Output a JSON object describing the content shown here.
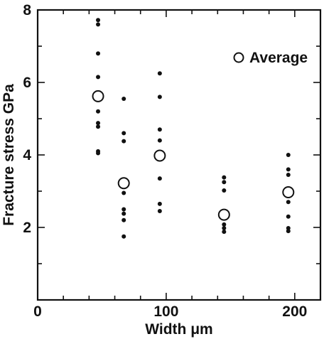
{
  "chart_data": {
    "type": "scatter",
    "xlabel": "Width  μm",
    "ylabel": "Fracture stress  GPa",
    "xlim": [
      0,
      220
    ],
    "ylim": [
      0,
      8
    ],
    "x_ticks": [
      0,
      100,
      200
    ],
    "y_ticks": [
      2,
      4,
      6,
      8
    ],
    "x_minor_step": 20,
    "y_minor_step": 1,
    "grid": false,
    "legend": {
      "position": "top-right",
      "entries": [
        "Average"
      ]
    },
    "series": [
      {
        "marker": "filled-dot",
        "points": [
          {
            "x": 47,
            "y": 7.72
          },
          {
            "x": 47,
            "y": 7.6
          },
          {
            "x": 47,
            "y": 6.8
          },
          {
            "x": 47,
            "y": 6.15
          },
          {
            "x": 47,
            "y": 5.2
          },
          {
            "x": 47,
            "y": 4.88
          },
          {
            "x": 47,
            "y": 4.78
          },
          {
            "x": 47,
            "y": 4.1
          },
          {
            "x": 47,
            "y": 4.05
          },
          {
            "x": 67,
            "y": 5.55
          },
          {
            "x": 67,
            "y": 4.6
          },
          {
            "x": 67,
            "y": 4.38
          },
          {
            "x": 67,
            "y": 2.95
          },
          {
            "x": 67,
            "y": 2.5
          },
          {
            "x": 67,
            "y": 2.38
          },
          {
            "x": 67,
            "y": 2.2
          },
          {
            "x": 67,
            "y": 1.75
          },
          {
            "x": 95,
            "y": 6.25
          },
          {
            "x": 95,
            "y": 5.6
          },
          {
            "x": 95,
            "y": 4.7
          },
          {
            "x": 95,
            "y": 4.4
          },
          {
            "x": 95,
            "y": 3.35
          },
          {
            "x": 95,
            "y": 2.65
          },
          {
            "x": 95,
            "y": 2.45
          },
          {
            "x": 145,
            "y": 3.38
          },
          {
            "x": 145,
            "y": 3.25
          },
          {
            "x": 145,
            "y": 3.02
          },
          {
            "x": 145,
            "y": 2.08
          },
          {
            "x": 145,
            "y": 1.98
          },
          {
            "x": 145,
            "y": 1.88
          },
          {
            "x": 195,
            "y": 4.0
          },
          {
            "x": 195,
            "y": 3.6
          },
          {
            "x": 195,
            "y": 3.45
          },
          {
            "x": 195,
            "y": 2.7
          },
          {
            "x": 195,
            "y": 2.3
          },
          {
            "x": 195,
            "y": 1.98
          },
          {
            "x": 195,
            "y": 1.9
          }
        ]
      },
      {
        "name": "Average",
        "marker": "open-circle",
        "points": [
          {
            "x": 47,
            "y": 5.62
          },
          {
            "x": 67,
            "y": 3.22
          },
          {
            "x": 95,
            "y": 3.98
          },
          {
            "x": 145,
            "y": 2.35
          },
          {
            "x": 195,
            "y": 2.97
          }
        ]
      }
    ]
  }
}
